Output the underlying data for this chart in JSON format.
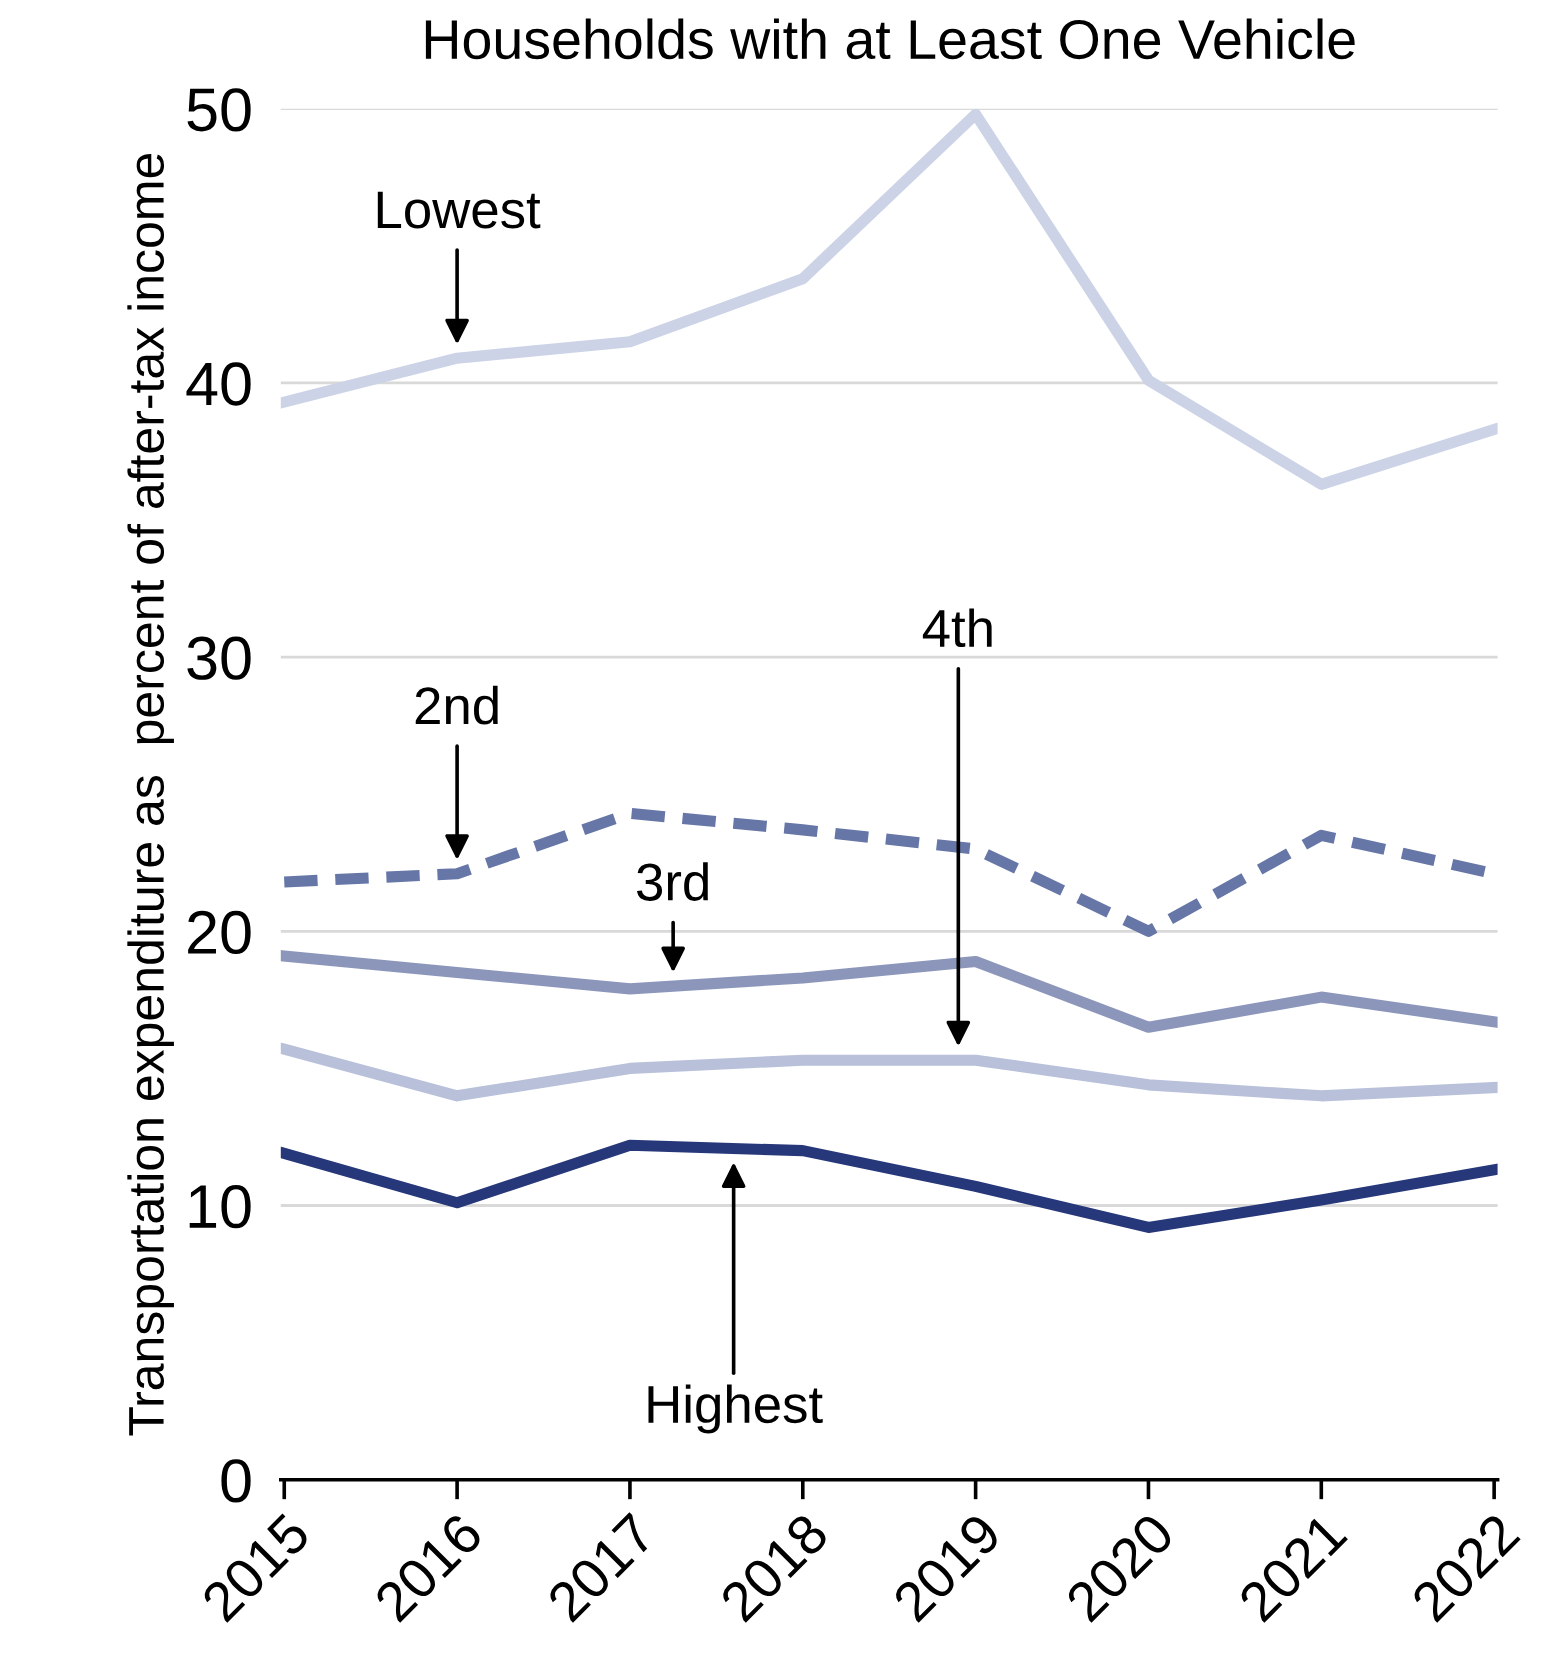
{
  "chart_data": {
    "type": "line",
    "title": "Households with at Least One Vehicle",
    "ylabel": "Transportation expenditure as  percent of after-tax income",
    "categories": [
      "2015",
      "2016",
      "2017",
      "2018",
      "2019",
      "2020",
      "2021",
      "2022"
    ],
    "series": [
      {
        "name": "Lowest",
        "color": "#ccd3e6",
        "values": [
          39.3,
          40.9,
          41.5,
          43.8,
          49.8,
          40.1,
          36.3,
          38.3
        ]
      },
      {
        "name": "2nd",
        "color": "#6676a6",
        "line_style": "dashed",
        "values": [
          21.8,
          22.1,
          24.3,
          23.7,
          23.0,
          20.0,
          23.5,
          22.1
        ]
      },
      {
        "name": "3rd",
        "color": "#8c96bb",
        "values": [
          19.1,
          18.5,
          17.9,
          18.3,
          18.9,
          16.5,
          17.6,
          16.7
        ]
      },
      {
        "name": "4th",
        "color": "#b8c0da",
        "values": [
          15.7,
          14.0,
          15.0,
          15.3,
          15.3,
          14.4,
          14.0,
          14.3
        ]
      },
      {
        "name": "Highest",
        "color": "#26377a",
        "values": [
          11.9,
          10.1,
          12.2,
          12.0,
          10.7,
          9.2,
          10.2,
          11.3
        ]
      }
    ],
    "ylim": [
      0,
      50
    ],
    "yticks": [
      0,
      10,
      20,
      30,
      40,
      50
    ],
    "grid": "y",
    "legend": false,
    "marker": "none",
    "line_style": "solid"
  }
}
